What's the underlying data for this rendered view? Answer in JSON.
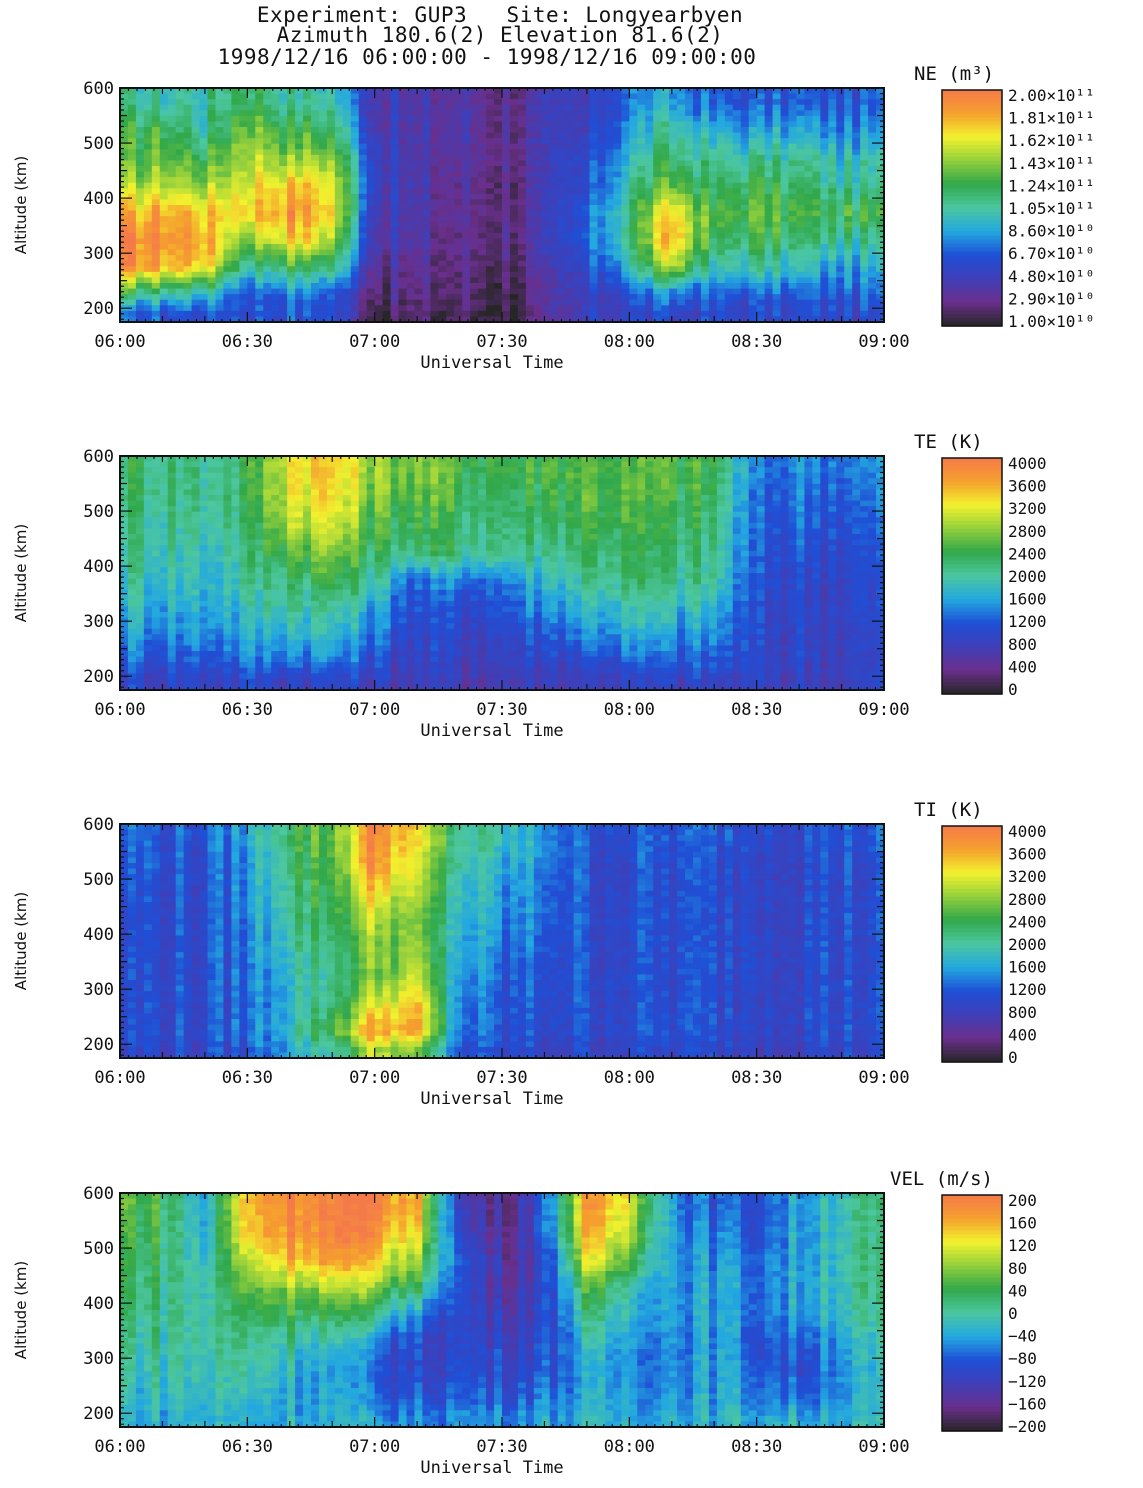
{
  "header": {
    "line1": "Experiment: GUP3   Site: Longyearbyen",
    "line2": "Azimuth 180.6(2) Elevation 81.6(2)",
    "line3": "1998/12/16 06:00:00 - 1998/12/16 09:00:00"
  },
  "colors": {
    "scale": [
      "#262626",
      "#6a2f8c",
      "#3f3fb8",
      "#1f4fd6",
      "#23a8e0",
      "#4cc7a0",
      "#31a84a",
      "#92cf3c",
      "#f2f22e",
      "#f5a02e",
      "#f57a4a"
    ]
  },
  "chart_data": [
    {
      "type": "heatmap",
      "parameter": "NE",
      "colorbar_title": "NE (m³)",
      "colorbar_labels": [
        "2.00×10¹¹",
        "1.81×10¹¹",
        "1.62×10¹¹",
        "1.43×10¹¹",
        "1.24×10¹¹",
        "1.05×10¹¹",
        "8.60×10¹⁰",
        "6.70×10¹⁰",
        "4.80×10¹⁰",
        "2.90×10¹⁰",
        "1.00×10¹⁰"
      ],
      "vmin": 10000000000.0,
      "vmax": 200000000000.0,
      "xlabel": "Universal Time",
      "ylabel": "Altitude (km)",
      "xticks": [
        "06:00",
        "06:30",
        "07:00",
        "07:30",
        "08:00",
        "08:30",
        "09:00"
      ],
      "yticks": [
        "600",
        "500",
        "400",
        "300",
        "200"
      ],
      "xlim": [
        "06:00",
        "09:00"
      ],
      "ylim": [
        175,
        600
      ],
      "time_columns": [
        "06:00",
        "06:10",
        "06:20",
        "06:30",
        "06:40",
        "06:50",
        "07:00",
        "07:10",
        "07:20",
        "07:30",
        "07:40",
        "07:50",
        "08:00",
        "08:10",
        "08:20",
        "08:30",
        "08:40",
        "08:50"
      ],
      "altitude_rows": [
        575,
        525,
        475,
        425,
        375,
        325,
        275,
        225,
        190
      ],
      "values": [
        [
          0.5,
          0.5,
          0.5,
          0.6,
          0.5,
          0.5,
          0.2,
          0.15,
          0.15,
          0.12,
          0.15,
          0.2,
          0.35,
          0.4,
          0.3,
          0.3,
          0.3,
          0.3
        ],
        [
          0.6,
          0.6,
          0.5,
          0.7,
          0.6,
          0.6,
          0.2,
          0.15,
          0.15,
          0.12,
          0.15,
          0.2,
          0.4,
          0.5,
          0.4,
          0.4,
          0.4,
          0.35
        ],
        [
          0.6,
          0.65,
          0.6,
          0.75,
          0.7,
          0.7,
          0.25,
          0.15,
          0.15,
          0.12,
          0.15,
          0.25,
          0.45,
          0.55,
          0.5,
          0.5,
          0.5,
          0.45
        ],
        [
          0.7,
          0.75,
          0.7,
          0.8,
          0.85,
          0.8,
          0.25,
          0.15,
          0.12,
          0.1,
          0.15,
          0.25,
          0.5,
          0.65,
          0.55,
          0.6,
          0.55,
          0.5
        ],
        [
          0.85,
          0.9,
          0.85,
          0.85,
          0.95,
          0.85,
          0.2,
          0.15,
          0.12,
          0.1,
          0.15,
          0.3,
          0.55,
          0.85,
          0.6,
          0.65,
          0.6,
          0.6
        ],
        [
          0.95,
          0.95,
          0.9,
          0.7,
          0.85,
          0.75,
          0.2,
          0.12,
          0.1,
          0.1,
          0.15,
          0.3,
          0.55,
          0.9,
          0.55,
          0.6,
          0.55,
          0.5
        ],
        [
          0.95,
          0.9,
          0.85,
          0.5,
          0.6,
          0.55,
          0.15,
          0.1,
          0.1,
          0.08,
          0.12,
          0.25,
          0.45,
          0.75,
          0.45,
          0.5,
          0.45,
          0.4
        ],
        [
          0.55,
          0.5,
          0.45,
          0.3,
          0.35,
          0.3,
          0.1,
          0.08,
          0.08,
          0.05,
          0.1,
          0.2,
          0.3,
          0.35,
          0.3,
          0.3,
          0.3,
          0.3
        ],
        [
          0.3,
          0.3,
          0.3,
          0.3,
          0.3,
          0.3,
          0.05,
          0.05,
          0.05,
          0.05,
          0.08,
          0.2,
          0.25,
          0.25,
          0.25,
          0.25,
          0.25,
          0.25
        ]
      ]
    },
    {
      "type": "heatmap",
      "parameter": "TE",
      "colorbar_title": "TE (K)",
      "colorbar_labels": [
        "4000",
        "3600",
        "3200",
        "2800",
        "2400",
        "2000",
        "1600",
        "1200",
        "800",
        "400",
        "0"
      ],
      "vmin": 0,
      "vmax": 4000,
      "xlabel": "Universal Time",
      "ylabel": "Altitude (km)",
      "xticks": [
        "06:00",
        "06:30",
        "07:00",
        "07:30",
        "08:00",
        "08:30",
        "09:00"
      ],
      "yticks": [
        "600",
        "500",
        "400",
        "300",
        "200"
      ],
      "xlim": [
        "06:00",
        "09:00"
      ],
      "ylim": [
        175,
        600
      ],
      "time_columns": [
        "06:00",
        "06:10",
        "06:20",
        "06:30",
        "06:40",
        "06:50",
        "07:00",
        "07:10",
        "07:20",
        "07:30",
        "07:40",
        "07:50",
        "08:00",
        "08:10",
        "08:20",
        "08:30",
        "08:40",
        "08:50"
      ],
      "altitude_rows": [
        575,
        525,
        475,
        425,
        375,
        325,
        275,
        225,
        190
      ],
      "values": [
        [
          2300,
          2200,
          2100,
          2300,
          3300,
          3400,
          2800,
          2700,
          2500,
          2400,
          2500,
          2600,
          2500,
          2500,
          2400,
          1300,
          1500,
          1400
        ],
        [
          2300,
          2200,
          2100,
          2300,
          3200,
          3300,
          2700,
          2600,
          2400,
          2300,
          2400,
          2600,
          2500,
          2400,
          2300,
          1200,
          1400,
          1300
        ],
        [
          2200,
          2100,
          2000,
          2200,
          3000,
          3100,
          2500,
          2400,
          2300,
          2200,
          2300,
          2500,
          2400,
          2300,
          2200,
          1200,
          1300,
          1200
        ],
        [
          2100,
          2000,
          1900,
          2100,
          2600,
          2800,
          2300,
          2200,
          2200,
          2100,
          2100,
          2300,
          2300,
          2200,
          2100,
          1100,
          1200,
          1100
        ],
        [
          2000,
          1900,
          1800,
          2000,
          2300,
          2400,
          2000,
          1300,
          1500,
          1400,
          1800,
          2100,
          2200,
          2100,
          2000,
          1100,
          1100,
          1000
        ],
        [
          1800,
          1700,
          1700,
          1800,
          2100,
          2000,
          1700,
          1100,
          1100,
          1200,
          1500,
          1800,
          1900,
          1800,
          1700,
          1000,
          1000,
          1000
        ],
        [
          1600,
          1500,
          1500,
          1600,
          1800,
          1800,
          1400,
          1000,
          1000,
          1000,
          1200,
          1500,
          1600,
          1500,
          1500,
          1000,
          1000,
          950
        ],
        [
          1300,
          1200,
          1200,
          1300,
          1400,
          1400,
          1100,
          900,
          900,
          900,
          1000,
          1100,
          1200,
          1200,
          1200,
          950,
          950,
          900
        ],
        [
          1000,
          1000,
          1000,
          1000,
          1000,
          1000,
          900,
          800,
          800,
          800,
          850,
          900,
          900,
          900,
          900,
          900,
          900,
          900
        ]
      ]
    },
    {
      "type": "heatmap",
      "parameter": "TI",
      "colorbar_title": "TI (K)",
      "colorbar_labels": [
        "4000",
        "3600",
        "3200",
        "2800",
        "2400",
        "2000",
        "1600",
        "1200",
        "800",
        "400",
        "0"
      ],
      "vmin": 0,
      "vmax": 4000,
      "xlabel": "Universal Time",
      "ylabel": "Altitude (km)",
      "xticks": [
        "06:00",
        "06:30",
        "07:00",
        "07:30",
        "08:00",
        "08:30",
        "09:00"
      ],
      "yticks": [
        "600",
        "500",
        "400",
        "300",
        "200"
      ],
      "xlim": [
        "06:00",
        "09:00"
      ],
      "ylim": [
        175,
        600
      ],
      "time_columns": [
        "06:00",
        "06:10",
        "06:20",
        "06:30",
        "06:40",
        "06:50",
        "07:00",
        "07:10",
        "07:20",
        "07:30",
        "07:40",
        "07:50",
        "08:00",
        "08:10",
        "08:20",
        "08:30",
        "08:40",
        "08:50"
      ],
      "altitude_rows": [
        575,
        525,
        475,
        425,
        375,
        325,
        275,
        225,
        190
      ],
      "values": [
        [
          1300,
          1200,
          1200,
          1600,
          2400,
          2600,
          3900,
          3200,
          2100,
          1800,
          1600,
          1200,
          1200,
          1200,
          1200,
          1200,
          1200,
          1200
        ],
        [
          1200,
          1200,
          1100,
          1500,
          2300,
          2500,
          3800,
          3000,
          2000,
          1600,
          1500,
          1100,
          1100,
          1100,
          1100,
          1100,
          1100,
          1100
        ],
        [
          1200,
          1100,
          1100,
          1500,
          2200,
          2400,
          3400,
          2800,
          1900,
          1500,
          1400,
          1100,
          1100,
          1100,
          1100,
          1100,
          1100,
          1100
        ],
        [
          1100,
          1100,
          1100,
          1400,
          2100,
          2300,
          3000,
          2600,
          1800,
          1400,
          1400,
          1100,
          1100,
          1100,
          1100,
          1100,
          1100,
          1100
        ],
        [
          1100,
          1100,
          1100,
          1400,
          2000,
          2200,
          2800,
          2700,
          1700,
          1300,
          1300,
          1100,
          1100,
          1100,
          1100,
          1100,
          1100,
          1100
        ],
        [
          1100,
          1100,
          1100,
          1300,
          1900,
          2100,
          2700,
          2900,
          1600,
          1200,
          1200,
          1100,
          1100,
          1100,
          1100,
          1100,
          1100,
          1100
        ],
        [
          1100,
          1100,
          1100,
          1300,
          1800,
          2200,
          3100,
          3300,
          1500,
          1100,
          1200,
          1100,
          1100,
          1100,
          1100,
          1100,
          1100,
          1100
        ],
        [
          1100,
          1100,
          1100,
          1300,
          1900,
          2500,
          3700,
          3500,
          1400,
          1100,
          1100,
          1100,
          1100,
          1100,
          1100,
          1100,
          1100,
          1100
        ],
        [
          1000,
          1000,
          1000,
          1200,
          1700,
          2000,
          3000,
          2600,
          1200,
          1000,
          1000,
          1000,
          1000,
          1000,
          1000,
          1000,
          1000,
          1000
        ]
      ]
    },
    {
      "type": "heatmap",
      "parameter": "VEL",
      "colorbar_title": "VEL (m/s)",
      "colorbar_labels": [
        "200",
        "160",
        "120",
        "80",
        "40",
        "0",
        "−40",
        "−80",
        "−120",
        "−160",
        "−200"
      ],
      "vmin": -200,
      "vmax": 200,
      "xlabel": "Universal Time",
      "ylabel": "Altitude (km)",
      "xticks": [
        "06:00",
        "06:30",
        "07:00",
        "07:30",
        "08:00",
        "08:30",
        "09:00"
      ],
      "yticks": [
        "600",
        "500",
        "400",
        "300",
        "200"
      ],
      "xlim": [
        "06:00",
        "09:00"
      ],
      "ylim": [
        175,
        600
      ],
      "time_columns": [
        "06:00",
        "06:10",
        "06:20",
        "06:30",
        "06:40",
        "06:50",
        "07:00",
        "07:10",
        "07:20",
        "07:30",
        "07:40",
        "07:50",
        "08:00",
        "08:10",
        "08:20",
        "08:30",
        "08:40",
        "08:50"
      ],
      "altitude_rows": [
        575,
        525,
        475,
        425,
        375,
        325,
        275,
        225,
        190
      ],
      "values": [
        [
          60,
          40,
          -40,
          150,
          190,
          190,
          190,
          150,
          -120,
          -160,
          -80,
          160,
          120,
          -40,
          -80,
          -80,
          -40,
          0
        ],
        [
          50,
          30,
          -30,
          140,
          180,
          190,
          170,
          120,
          -100,
          -150,
          -80,
          140,
          100,
          -40,
          -60,
          -80,
          -40,
          0
        ],
        [
          40,
          20,
          -20,
          100,
          150,
          160,
          130,
          80,
          -80,
          -140,
          -100,
          100,
          60,
          -40,
          -50,
          -60,
          -40,
          0
        ],
        [
          30,
          20,
          -10,
          60,
          80,
          90,
          70,
          20,
          -90,
          -140,
          -100,
          40,
          0,
          -40,
          -40,
          -60,
          -40,
          0
        ],
        [
          20,
          10,
          0,
          30,
          40,
          30,
          0,
          -60,
          -100,
          -120,
          -100,
          0,
          -20,
          -40,
          -40,
          -60,
          -40,
          -10
        ],
        [
          10,
          0,
          0,
          10,
          0,
          -20,
          -60,
          -100,
          -100,
          -100,
          -90,
          -30,
          -40,
          -50,
          -40,
          -80,
          -80,
          -30
        ],
        [
          0,
          -10,
          -10,
          0,
          -20,
          -40,
          -80,
          -100,
          -90,
          -90,
          -80,
          -50,
          -50,
          -50,
          -40,
          -60,
          -90,
          -40
        ],
        [
          -20,
          -20,
          -20,
          -20,
          -30,
          -40,
          -70,
          -80,
          -70,
          -70,
          -60,
          -40,
          -40,
          -40,
          -40,
          -50,
          -60,
          -40
        ],
        [
          -30,
          -30,
          -30,
          -30,
          -30,
          -30,
          -50,
          -50,
          -50,
          -50,
          -40,
          -30,
          -30,
          -30,
          -30,
          -30,
          -30,
          -30
        ]
      ]
    }
  ]
}
